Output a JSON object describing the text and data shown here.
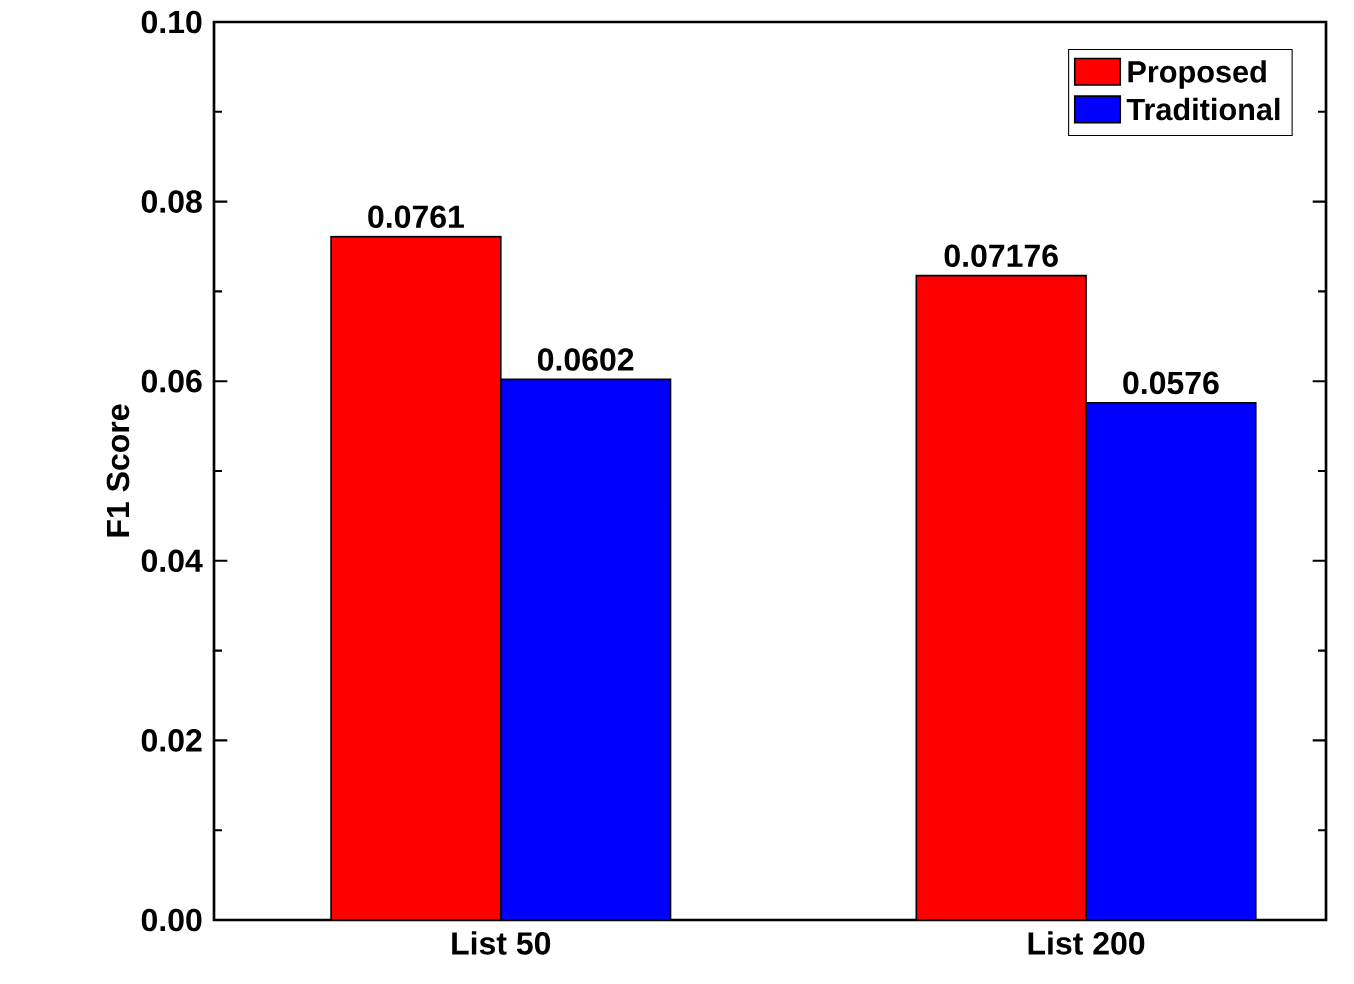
{
  "chart_data": {
    "type": "bar",
    "ylabel": "F1 Score",
    "categories": [
      "List 50",
      "List 200"
    ],
    "series": [
      {
        "name": "Proposed",
        "color": "#ff0000",
        "values": [
          0.0761,
          0.07176
        ],
        "value_labels": [
          "0.0761",
          "0.07176"
        ]
      },
      {
        "name": "Traditional",
        "color": "#0000ff",
        "values": [
          0.0602,
          0.0576
        ],
        "value_labels": [
          "0.0602",
          "0.0576"
        ]
      }
    ],
    "ylim": [
      0,
      0.1
    ],
    "yticks": [
      {
        "value": 0,
        "label": "0.00"
      },
      {
        "value": 0.02,
        "label": "0.02"
      },
      {
        "value": 0.04,
        "label": "0.04"
      },
      {
        "value": 0.06,
        "label": "0.06"
      },
      {
        "value": 0.08,
        "label": "0.08"
      },
      {
        "value": 0.1,
        "label": "0.10"
      }
    ],
    "grid": false,
    "legend": "top right"
  }
}
